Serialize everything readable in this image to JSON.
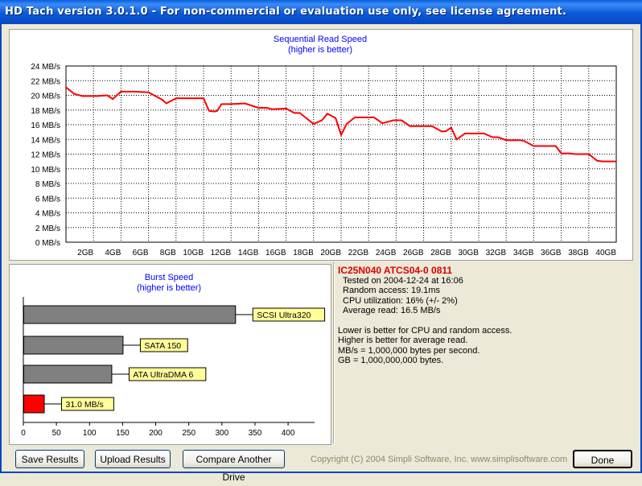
{
  "window": {
    "title": "HD Tach version 3.0.1.0  - For non-commercial or evaluation use only, see license agreement."
  },
  "colors": {
    "title_bar": "#0a5ad8",
    "line": "#ff0000",
    "bar_gray": "#808080",
    "bar_red": "#ff0000",
    "label_bg": "#ffff99",
    "chart_title": "#0000ff",
    "drive_name": "#e00000"
  },
  "chart_data": [
    {
      "type": "line",
      "title": "Sequential Read Speed",
      "subtitle": "(higher is better)",
      "xlabel": "",
      "ylabel": "",
      "x_unit": "GB",
      "y_unit": "MB/s",
      "xlim": [
        0,
        40
      ],
      "ylim": [
        0,
        24
      ],
      "x_ticks": [
        "2GB",
        "4GB",
        "6GB",
        "8GB",
        "10GB",
        "12GB",
        "14GB",
        "16GB",
        "18GB",
        "20GB",
        "22GB",
        "24GB",
        "26GB",
        "28GB",
        "30GB",
        "32GB",
        "34GB",
        "36GB",
        "38GB",
        "40GB"
      ],
      "y_ticks": [
        "0 MB/s",
        "2 MB/s",
        "4 MB/s",
        "6 MB/s",
        "8 MB/s",
        "10 MB/s",
        "12 MB/s",
        "14 MB/s",
        "16 MB/s",
        "18 MB/s",
        "20 MB/s",
        "22 MB/s",
        "24 MB/s"
      ],
      "grid": true,
      "series": [
        {
          "x": [
            0,
            0.6,
            1.2,
            2.2,
            3,
            3.4,
            4,
            5,
            6,
            7,
            7.3,
            8,
            9,
            10,
            10.4,
            10.8,
            11,
            11.3,
            12,
            13,
            14,
            14.6,
            15,
            16,
            16.6,
            17,
            18,
            18.6,
            19,
            19.6,
            20,
            20.4,
            21,
            22,
            22.4,
            23,
            23.8,
            24.4,
            25,
            26,
            26.6,
            27.3,
            27.6,
            28,
            28.4,
            29,
            30,
            30.4,
            31,
            31.4,
            32,
            32.6,
            33,
            33.3,
            34,
            35,
            35.6,
            36,
            36.6,
            37,
            37.6,
            38,
            38.6,
            39,
            40
          ],
          "y": [
            21.1,
            20.2,
            19.9,
            19.9,
            20,
            19.5,
            20.5,
            20.5,
            20.4,
            19.4,
            18.9,
            19.6,
            19.6,
            19.6,
            17.9,
            17.8,
            17.9,
            18.8,
            18.8,
            18.9,
            18.3,
            18.3,
            18.1,
            18.2,
            17.6,
            17.6,
            16.1,
            16.6,
            17.5,
            16.9,
            14.6,
            16.1,
            17,
            17,
            17,
            16.2,
            16.6,
            16.6,
            15.8,
            15.8,
            15.8,
            15.1,
            15.1,
            15.6,
            14,
            14.8,
            14.8,
            14.8,
            14.3,
            14.3,
            13.9,
            13.9,
            13.9,
            13.8,
            13.1,
            13.1,
            13.1,
            12.1,
            12.1,
            12,
            12,
            12,
            11.1,
            11,
            11
          ]
        }
      ]
    },
    {
      "type": "bar",
      "orientation": "horizontal",
      "title": "Burst Speed",
      "subtitle": "(higher is better)",
      "xlim": [
        0,
        440
      ],
      "x_ticks": [
        "0",
        "50",
        "100",
        "150",
        "200",
        "250",
        "300",
        "350",
        "400"
      ],
      "categories": [
        "SCSI Ultra320",
        "SATA 150",
        "ATA UltraDMA 6",
        "31.0 MB/s"
      ],
      "values": [
        320,
        150,
        133,
        31
      ],
      "highlight_index": 3
    }
  ],
  "info": {
    "drive_name": "IC25N040 ATCS04-0 0811",
    "tested_on": "Tested on 2004-12-24 at 16:06",
    "random_access": "Random access: 19.1ms",
    "cpu_utilization": "CPU utilization: 16% (+/- 2%)",
    "average_read": "Average read: 16.5 MB/s",
    "notes": [
      "Lower is better for CPU and random access.",
      "Higher is better for average read.",
      "MB/s = 1,000,000 bytes per second.",
      "GB = 1,000,000,000 bytes."
    ]
  },
  "buttons": {
    "save": "Save Results",
    "upload": "Upload Results",
    "compare": "Compare Another Drive",
    "done": "Done"
  },
  "footer": {
    "copyright": "Copyright (C) 2004 Simpli Software, Inc. www.simplisoftware.com"
  }
}
